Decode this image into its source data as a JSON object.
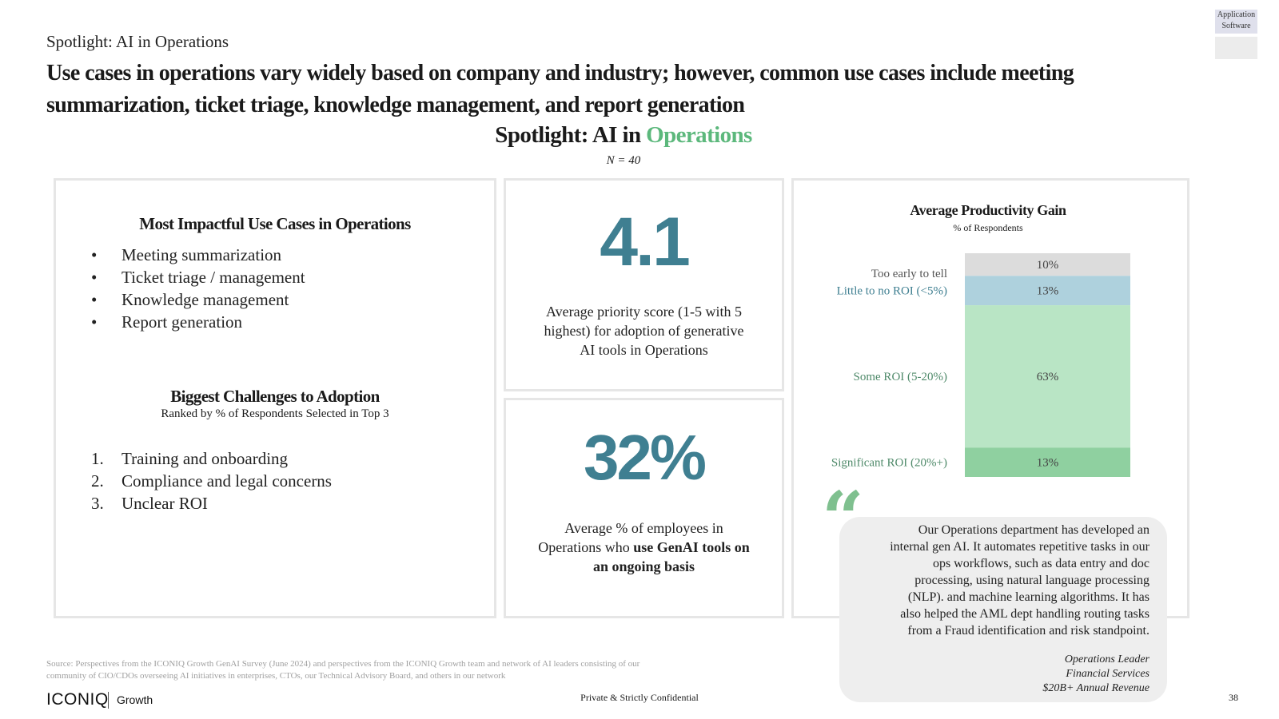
{
  "tag": {
    "line1": "Application",
    "line2": "Software"
  },
  "kicker": "Spotlight: AI in Operations",
  "headline_line1": "Use cases in operations vary widely based on company and industry; however, common use cases include meeting",
  "headline_line2": "summarization, ticket triage, knowledge management, and report generation",
  "spotlight": {
    "prefix": "Spotlight: AI in ",
    "accent": "Operations",
    "n": "N = 40",
    "accent_color": "#5cb87c"
  },
  "use_cases": {
    "title": "Most Impactful Use Cases in Operations",
    "bullet": "•",
    "items": [
      "Meeting summarization",
      "Ticket triage / management",
      "Knowledge management",
      "Report generation"
    ]
  },
  "challenges": {
    "title": "Biggest Challenges to Adoption",
    "subtitle": "Ranked by % of Respondents Selected in Top 3",
    "items": [
      {
        "num": "1.",
        "label": "Training and onboarding"
      },
      {
        "num": "2.",
        "label": "Compliance and legal concerns"
      },
      {
        "num": "3.",
        "label": "Unclear ROI"
      }
    ]
  },
  "stat1": {
    "value": "4.1",
    "desc_line1": "Average priority score (1-5 with 5",
    "desc_line2": "highest) for adoption of generative",
    "desc_line3": "AI tools in Operations"
  },
  "stat2": {
    "value": "32%",
    "desc_line1": "Average % of employees in",
    "desc_line2_pre": "Operations who ",
    "desc_line2_bold": "use GenAI tools on",
    "desc_line3_bold": "an ongoing basis"
  },
  "chart_data": {
    "type": "bar",
    "title": "Average Productivity Gain",
    "subtitle": "% of Respondents",
    "categories": [
      "Too early to tell",
      "Little to no ROI (<5%)",
      "Some ROI (5-20%)",
      "Significant ROI (20%+)"
    ],
    "values": [
      10,
      13,
      63,
      13
    ],
    "value_labels": [
      "10%",
      "13%",
      "63%",
      "13%"
    ],
    "colors": [
      "#dcdcdc",
      "#aed1dd",
      "#b9e5c5",
      "#8fd0a0"
    ],
    "label_colors": [
      "#555555",
      "#3f7f91",
      "#4f8a6a",
      "#4f8a6a"
    ],
    "stacked": true
  },
  "quote": {
    "mark": "“",
    "lines": [
      "Our Operations department has developed an",
      "internal gen AI. It automates repetitive tasks in our",
      "ops workflows, such as data entry and doc",
      "processing, using natural language processing",
      "(NLP). and machine learning algorithms. It has",
      "also helped the AML dept handling routing tasks",
      "from a Fraud identification and risk standpoint."
    ],
    "attribution": [
      "Operations Leader",
      "Financial Services",
      "$20B+ Annual Revenue"
    ]
  },
  "footer": {
    "source_line1": "Source: Perspectives from the ICONIQ Growth GenAI Survey (June 2024) and perspectives from the ICONIQ Growth team and network of AI leaders consisting of our",
    "source_line2": "community of CIO/CDOs overseeing AI initiatives in enterprises, CTOs, our Technical Advisory Board, and others in our network",
    "logo": "ICONIQ",
    "logo_sub": "Growth",
    "confidential": "Private & Strictly Confidential",
    "page": "38"
  }
}
